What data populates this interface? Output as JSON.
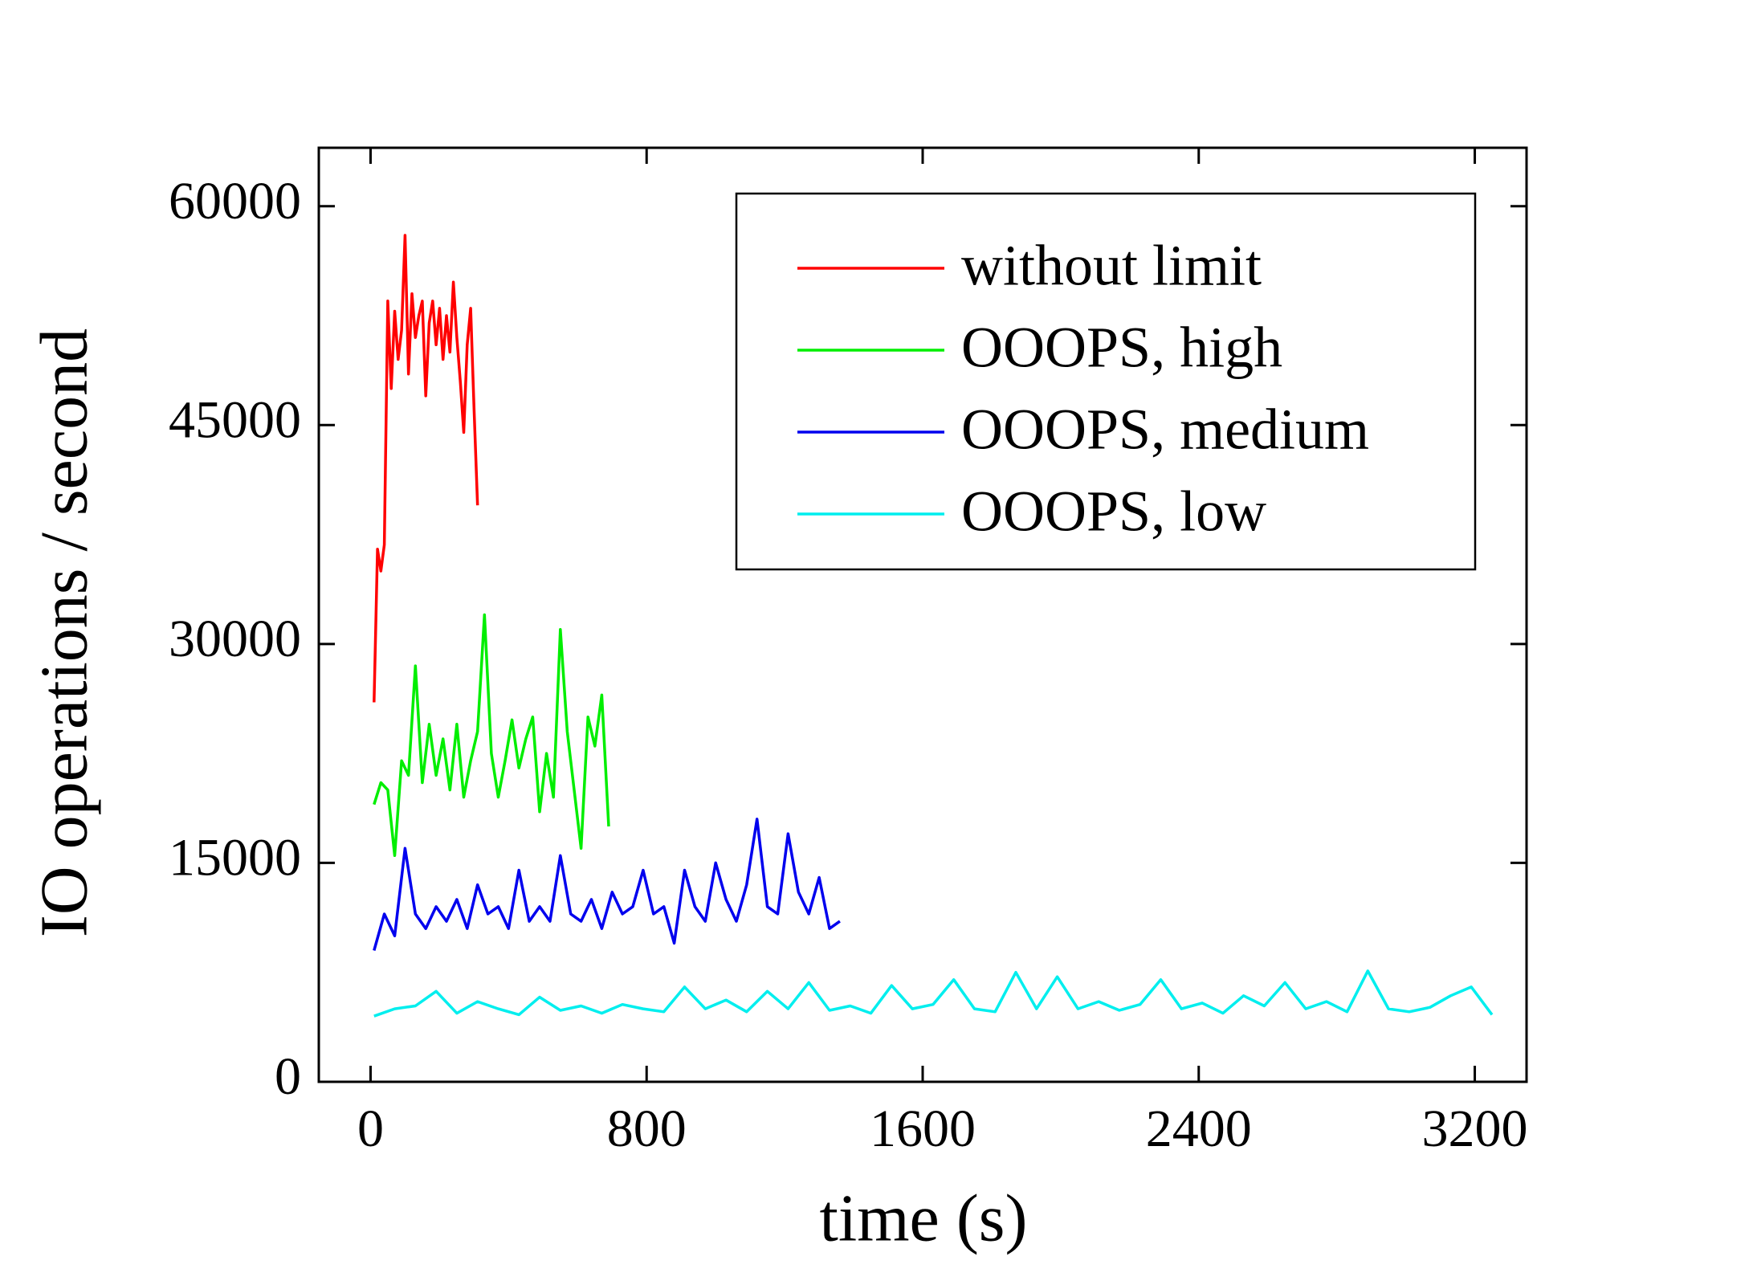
{
  "chart_data": {
    "type": "line",
    "xlabel": "time (s)",
    "ylabel": "IO operations / second",
    "xlim": [
      -150,
      3350
    ],
    "ylim": [
      0,
      64000
    ],
    "xticks": [
      0,
      800,
      1600,
      2400,
      3200
    ],
    "yticks": [
      0,
      15000,
      30000,
      45000,
      60000
    ],
    "legend": "upper right",
    "series": [
      {
        "name": "without limit",
        "color": "#ff0000",
        "x": [
          10,
          20,
          30,
          40,
          50,
          60,
          70,
          80,
          90,
          100,
          110,
          120,
          130,
          140,
          150,
          160,
          170,
          180,
          190,
          200,
          210,
          220,
          230,
          240,
          250,
          260,
          270,
          280,
          290,
          300,
          310
        ],
        "values": [
          26000,
          36500,
          35000,
          36800,
          53500,
          47500,
          52800,
          49500,
          51500,
          58000,
          48500,
          54000,
          51000,
          52500,
          53500,
          47000,
          52000,
          53500,
          50500,
          53000,
          49500,
          52500,
          50000,
          54800,
          51000,
          48000,
          44500,
          50500,
          53000,
          46000,
          39500
        ]
      },
      {
        "name": "OOOPS, high",
        "color": "#00ee00",
        "x": [
          10,
          30,
          50,
          70,
          90,
          110,
          130,
          150,
          170,
          190,
          210,
          230,
          250,
          270,
          290,
          310,
          330,
          350,
          370,
          390,
          410,
          430,
          450,
          470,
          490,
          510,
          530,
          550,
          570,
          590,
          610,
          630,
          650,
          670,
          690
        ],
        "values": [
          19000,
          20500,
          20000,
          15500,
          22000,
          21000,
          28500,
          20500,
          24500,
          21000,
          23500,
          20000,
          24500,
          19500,
          22000,
          24000,
          32000,
          22500,
          19500,
          22000,
          24800,
          21500,
          23500,
          25000,
          18500,
          22500,
          19500,
          31000,
          24000,
          20000,
          16000,
          25000,
          23000,
          26500,
          17500
        ]
      },
      {
        "name": "OOOPS, medium",
        "color": "#0000ee",
        "x": [
          10,
          40,
          70,
          100,
          130,
          160,
          190,
          220,
          250,
          280,
          310,
          340,
          370,
          400,
          430,
          460,
          490,
          520,
          550,
          580,
          610,
          640,
          670,
          700,
          730,
          760,
          790,
          820,
          850,
          880,
          910,
          940,
          970,
          1000,
          1030,
          1060,
          1090,
          1120,
          1150,
          1180,
          1210,
          1240,
          1270,
          1300,
          1330,
          1360
        ],
        "values": [
          9000,
          11500,
          10000,
          16000,
          11500,
          10500,
          12000,
          11000,
          12500,
          10500,
          13500,
          11500,
          12000,
          10500,
          14500,
          11000,
          12000,
          11000,
          15500,
          11500,
          11000,
          12500,
          10500,
          13000,
          11500,
          12000,
          14500,
          11500,
          12000,
          9500,
          14500,
          12000,
          11000,
          15000,
          12500,
          11000,
          13500,
          18000,
          12000,
          11500,
          17000,
          13000,
          11500,
          14000,
          10500,
          11000
        ]
      },
      {
        "name": "OOOPS, low",
        "color": "#00eeee",
        "x": [
          10,
          70,
          130,
          190,
          250,
          310,
          370,
          430,
          490,
          550,
          610,
          670,
          730,
          790,
          850,
          910,
          970,
          1030,
          1090,
          1150,
          1210,
          1270,
          1330,
          1390,
          1450,
          1510,
          1570,
          1630,
          1690,
          1750,
          1810,
          1870,
          1930,
          1990,
          2050,
          2110,
          2170,
          2230,
          2290,
          2350,
          2410,
          2470,
          2530,
          2590,
          2650,
          2710,
          2770,
          2830,
          2890,
          2950,
          3010,
          3070,
          3130,
          3190,
          3250
        ],
        "values": [
          4500,
          5000,
          5200,
          6200,
          4700,
          5500,
          5000,
          4600,
          5800,
          4900,
          5200,
          4700,
          5300,
          5000,
          4800,
          6500,
          5000,
          5600,
          4800,
          6200,
          5000,
          6800,
          4900,
          5200,
          4700,
          6600,
          5000,
          5300,
          7000,
          5000,
          4800,
          7500,
          5000,
          7200,
          5000,
          5500,
          4900,
          5300,
          7000,
          5000,
          5400,
          4700,
          5900,
          5200,
          6800,
          5000,
          5500,
          4800,
          7600,
          5000,
          4800,
          5100,
          5900,
          6500,
          4600
        ]
      }
    ]
  }
}
